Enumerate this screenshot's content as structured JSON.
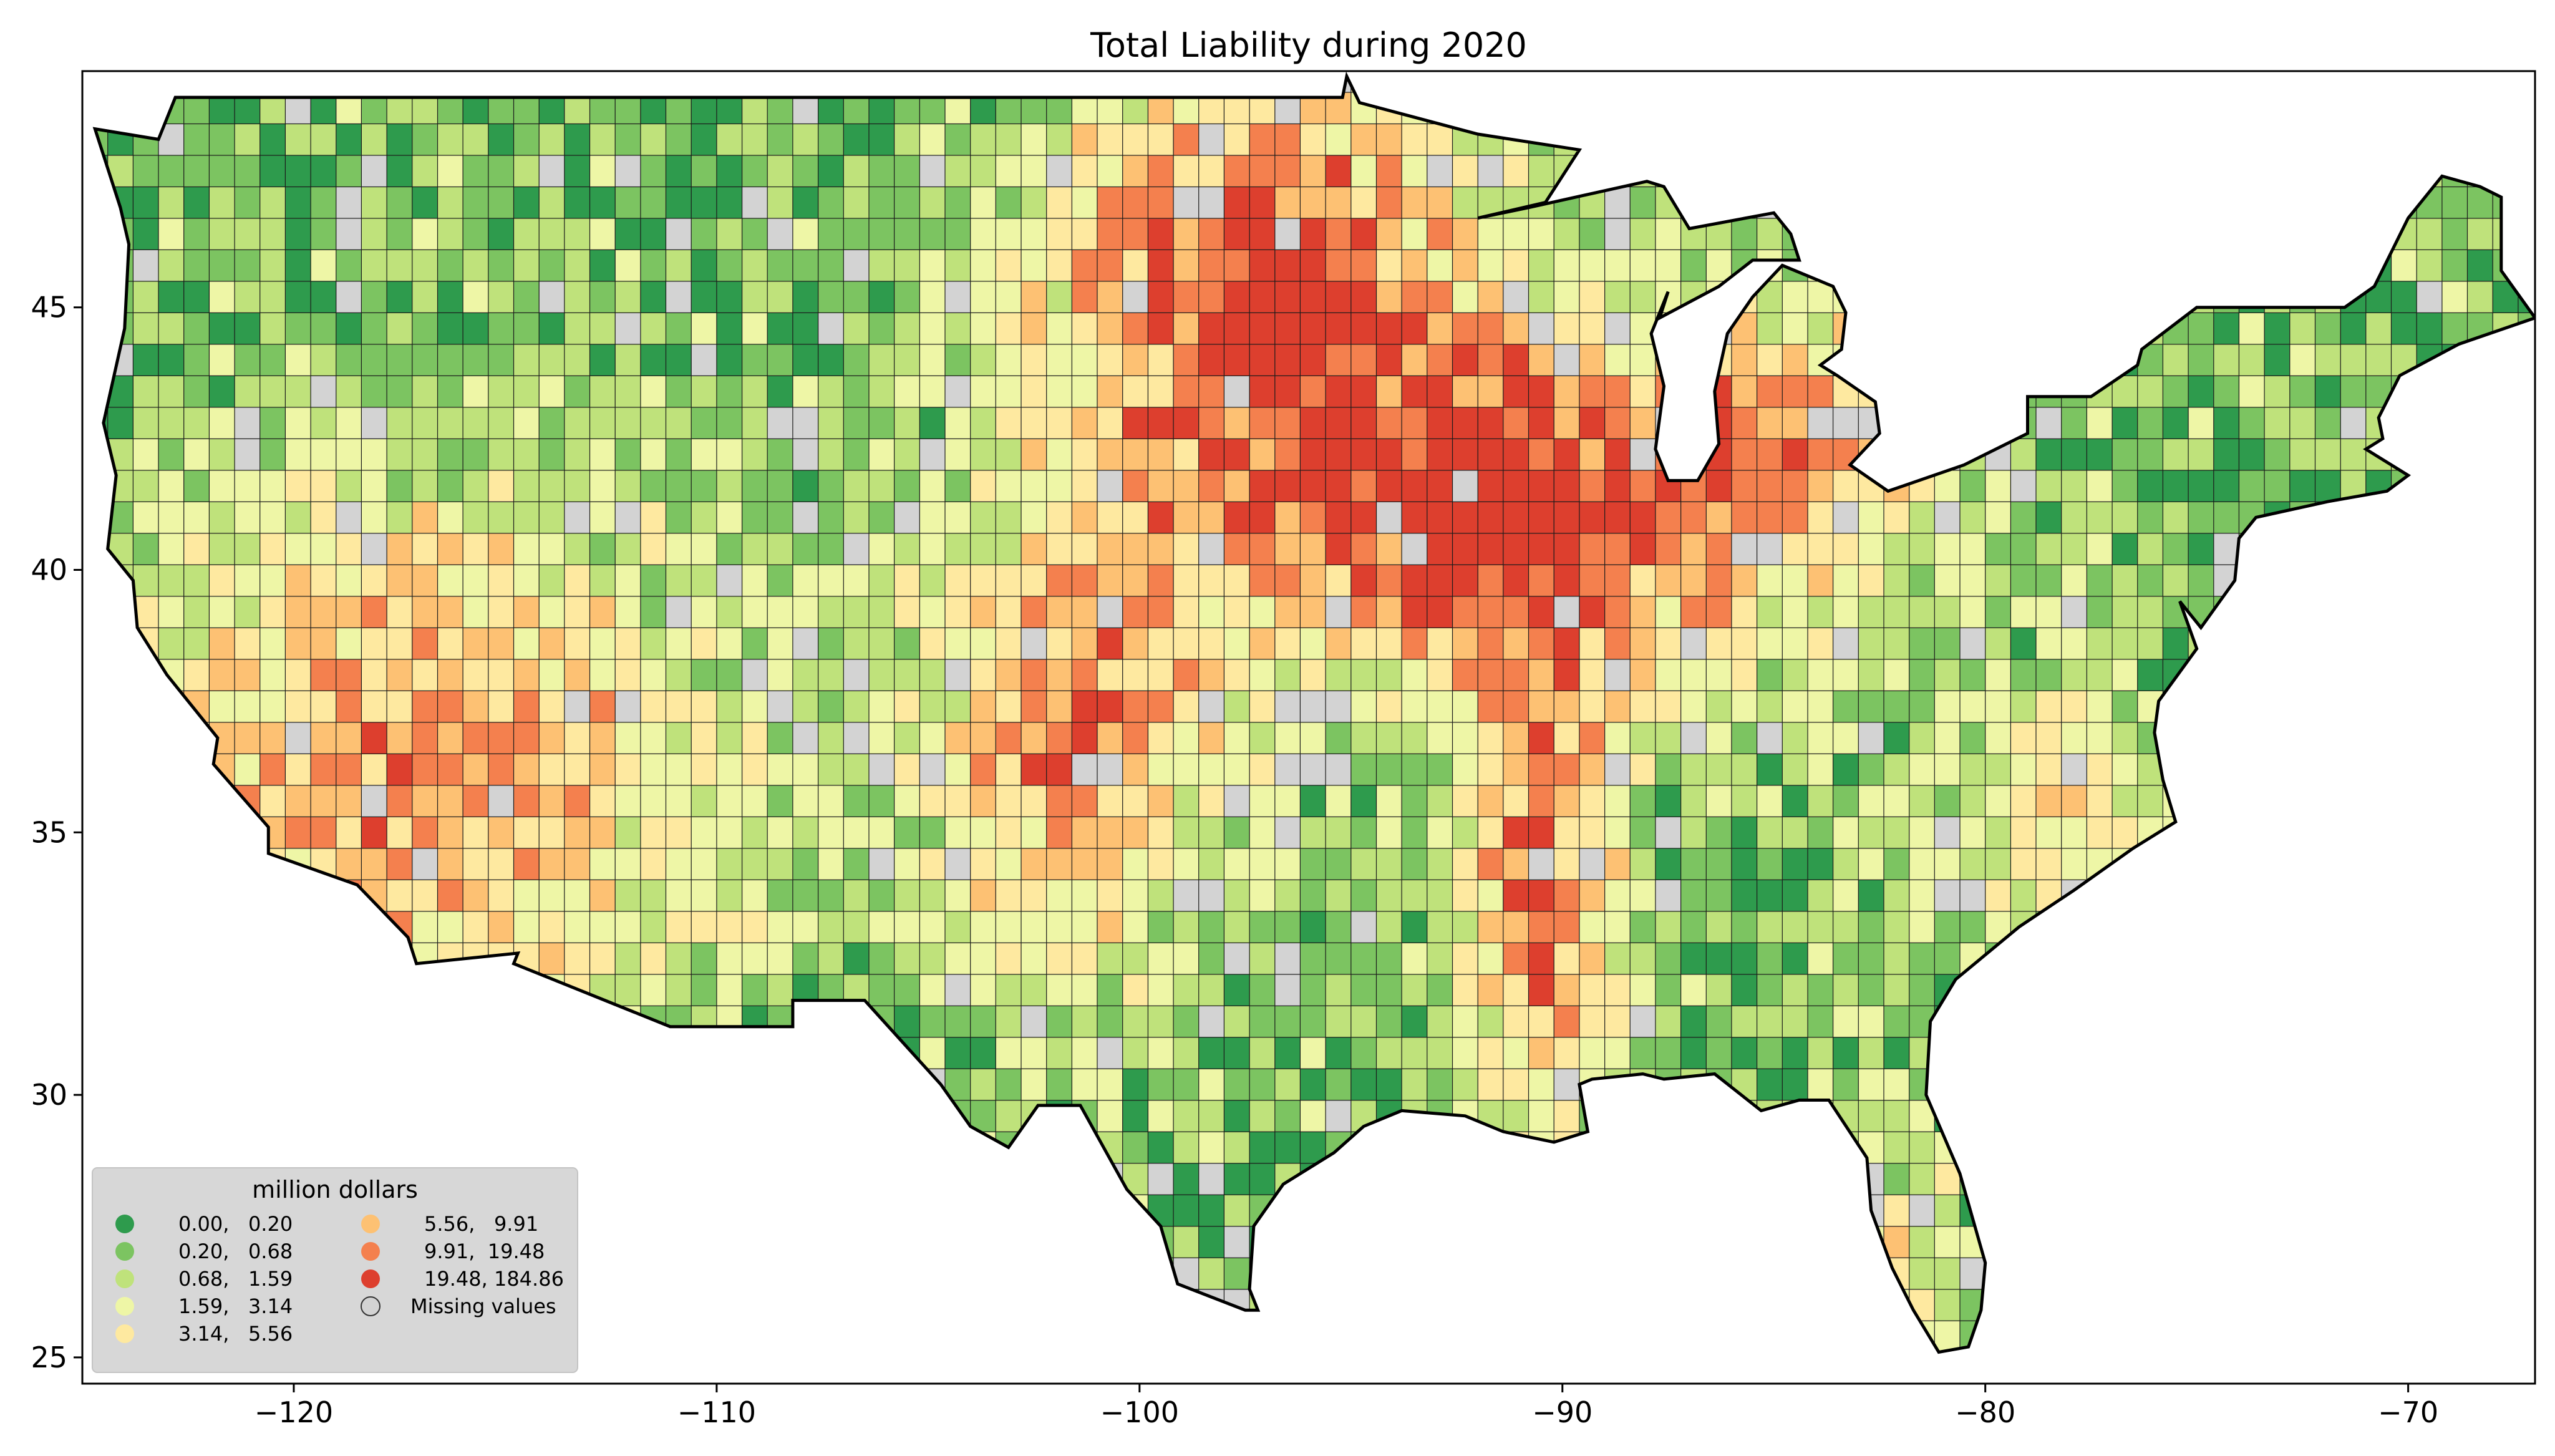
{
  "title": "Total Liability during 2020",
  "chart_data": {
    "type": "choropleth",
    "region": "contiguous United States, county level",
    "xlim": [
      -125,
      -67
    ],
    "ylim": [
      24.5,
      49.5
    ],
    "x_ticks": [
      -120,
      -110,
      -100,
      -90,
      -80,
      -70
    ],
    "y_ticks": [
      25,
      30,
      35,
      40,
      45
    ],
    "x_tick_labels": [
      "−120",
      "−110",
      "−100",
      "−90",
      "−80",
      "−70"
    ],
    "y_tick_labels": [
      "25",
      "30",
      "35",
      "40",
      "45"
    ],
    "legend": {
      "title": "million dollars",
      "placement": "lower-left",
      "entries": [
        {
          "label": "0.00,   0.20",
          "color": "#2e9b4d"
        },
        {
          "label": "0.20,   0.68",
          "color": "#7cc461"
        },
        {
          "label": "0.68,   1.59",
          "color": "#bfe27b"
        },
        {
          "label": "1.59,   3.14",
          "color": "#eef6a6"
        },
        {
          "label": "3.14,   5.56",
          "color": "#fee9a0"
        },
        {
          "label": "5.56,   9.91",
          "color": "#fdc173"
        },
        {
          "label": "9.91,  19.48",
          "color": "#f4804e"
        },
        {
          "label": "19.48, 184.86",
          "color": "#dd3f2e"
        },
        {
          "label": "Missing values",
          "color": "#d3d3d3"
        }
      ]
    }
  }
}
